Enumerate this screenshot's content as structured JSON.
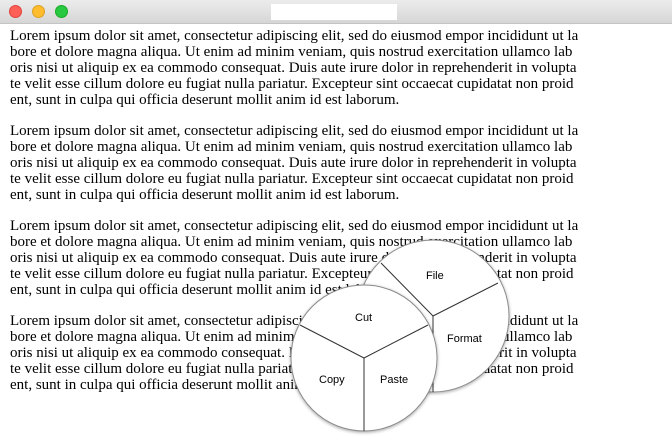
{
  "window": {
    "controls": {
      "close_color": "#fe5f57",
      "minimize_color": "#febc2e",
      "maximize_color": "#28c840"
    },
    "title": ""
  },
  "content": {
    "paragraphs": [
      [
        "Lorem ipsum dolor sit amet, consectetur adipiscing elit, sed do eiusmod empor incididunt ut la",
        "bore et dolore magna aliqua. Ut enim ad minim veniam, quis nostrud exercitation ullamco lab",
        "oris nisi ut aliquip ex ea commodo consequat. Duis aute irure dolor in reprehenderit in volupta",
        "te velit esse cillum dolore eu fugiat nulla pariatur. Excepteur sint occaecat cupidatat non proid",
        "ent, sunt in culpa qui officia deserunt mollit anim id est laborum."
      ],
      [
        "Lorem ipsum dolor sit amet, consectetur adipiscing elit, sed do eiusmod empor incididunt ut la",
        "bore et dolore magna aliqua. Ut enim ad minim veniam, quis nostrud exercitation ullamco lab",
        "oris nisi ut aliquip ex ea commodo consequat. Duis aute irure dolor in reprehenderit in volupta",
        "te velit esse cillum dolore eu fugiat nulla pariatur. Excepteur sint occaecat cupidatat non proid",
        "ent, sunt in culpa qui officia deserunt mollit anim id est laborum."
      ],
      [
        "Lorem ipsum dolor sit amet, consectetur adipiscing elit, sed do eiusmod empor incididunt ut la",
        "bore et dolore magna aliqua. Ut enim ad minim veniam, quis nostrud exercitation ullamco lab",
        "oris nisi ut aliquip ex ea commodo consequat. Duis aute irure dolor in reprehenderit in volupta",
        "te velit esse cillum dolore eu fugiat nulla pariatur. Excepteur sint occaecat cupidatat non proid",
        "ent, sunt in culpa qui officia deserunt mollit anim id est laborum."
      ],
      [
        "Lorem ipsum dolor sit amet, consectetur adipiscing elit, sed do eiusmod empor incididunt ut la",
        "bore et dolore magna aliqua. Ut enim ad minim veniam, quis nostrud exercitation ullamco lab",
        "oris nisi ut aliquip ex ea commodo consequat. Duis aute irure dolor in reprehenderit in volupta",
        "te velit esse cillum dolore eu fugiat nulla pariatur. Excepteur sint occaecat cupidatat non proid",
        "ent, sunt in culpa qui officia deserunt mollit anim id est laborum."
      ]
    ]
  },
  "pie_menus": {
    "main": {
      "items": {
        "file": "File",
        "format": "Format",
        "edit": ""
      }
    },
    "edit_submenu": {
      "items": {
        "cut": "Cut",
        "copy": "Copy",
        "paste": "Paste"
      }
    }
  }
}
